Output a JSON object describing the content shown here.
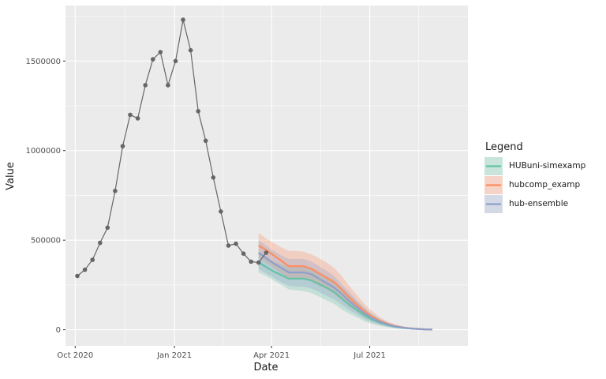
{
  "chart_data": {
    "type": "line",
    "xlabel": "Date",
    "ylabel": "Value",
    "xlim": [
      "2020-09-22",
      "2021-09-30"
    ],
    "ylim": [
      -90000,
      1810000
    ],
    "x_ticks": [
      {
        "date": "2020-10-01",
        "label": "Oct 2020"
      },
      {
        "date": "2021-01-01",
        "label": "Jan 2021"
      },
      {
        "date": "2021-04-01",
        "label": "Apr 2021"
      },
      {
        "date": "2021-07-01",
        "label": "Jul 2021"
      }
    ],
    "y_ticks": [
      {
        "value": 0,
        "label": "0"
      },
      {
        "value": 500000,
        "label": "500000"
      },
      {
        "value": 1000000,
        "label": "1000000"
      },
      {
        "value": 1500000,
        "label": "1500000"
      }
    ],
    "grid": true,
    "legend": {
      "title": "Legend",
      "position": "right",
      "entries": [
        "HUBuni-simexamp",
        "hubcomp_examp",
        "hub-ensemble"
      ]
    },
    "observed": {
      "color": "#666666",
      "x": [
        "2020-10-03",
        "2020-10-10",
        "2020-10-17",
        "2020-10-24",
        "2020-10-31",
        "2020-11-07",
        "2020-11-14",
        "2020-11-21",
        "2020-11-28",
        "2020-12-05",
        "2020-12-12",
        "2020-12-19",
        "2020-12-26",
        "2021-01-02",
        "2021-01-09",
        "2021-01-16",
        "2021-01-23",
        "2021-01-30",
        "2021-02-06",
        "2021-02-13",
        "2021-02-20",
        "2021-02-27",
        "2021-03-06",
        "2021-03-13",
        "2021-03-20",
        "2021-03-27"
      ],
      "y": [
        300000,
        335000,
        390000,
        485000,
        570000,
        775000,
        1025000,
        1200000,
        1180000,
        1365000,
        1510000,
        1550000,
        1365000,
        1500000,
        1730000,
        1560000,
        1220000,
        1055000,
        850000,
        660000,
        470000,
        480000,
        425000,
        380000,
        375000,
        430000
      ]
    },
    "forecast_x": [
      "2021-03-20",
      "2021-03-27",
      "2021-04-03",
      "2021-04-10",
      "2021-04-17",
      "2021-04-24",
      "2021-05-01",
      "2021-05-08",
      "2021-05-15",
      "2021-05-22",
      "2021-05-29",
      "2021-06-05",
      "2021-06-12",
      "2021-06-19",
      "2021-06-26",
      "2021-07-03",
      "2021-07-10",
      "2021-07-17",
      "2021-07-24",
      "2021-07-31",
      "2021-08-07",
      "2021-08-14",
      "2021-08-21",
      "2021-08-28"
    ],
    "series": [
      {
        "name": "HUBuni-simexamp",
        "color": "#66c2a5",
        "values": [
          375000,
          350000,
          325000,
          305000,
          285000,
          285000,
          285000,
          275000,
          255000,
          235000,
          210000,
          175000,
          140000,
          110000,
          80000,
          57000,
          40000,
          27000,
          17000,
          11000,
          7000,
          4000,
          2000,
          1000
        ],
        "lower": [
          320000,
          300000,
          275000,
          250000,
          225000,
          220000,
          215000,
          205000,
          185000,
          165000,
          145000,
          115000,
          90000,
          70000,
          48000,
          33000,
          22000,
          14000,
          8000,
          5000,
          3000,
          1500,
          700,
          300
        ],
        "upper": [
          430000,
          405000,
          380000,
          365000,
          350000,
          350000,
          350000,
          340000,
          320000,
          300000,
          275000,
          235000,
          195000,
          155000,
          115000,
          82000,
          58000,
          40000,
          26000,
          17000,
          11000,
          7000,
          4000,
          2000
        ]
      },
      {
        "name": "hubcomp_examp",
        "color": "#fc8d62",
        "values": [
          470000,
          445000,
          415000,
          385000,
          355000,
          355000,
          355000,
          340000,
          315000,
          290000,
          265000,
          225000,
          180000,
          140000,
          105000,
          73000,
          50000,
          33000,
          21000,
          13000,
          8500,
          5000,
          2500,
          1200
        ],
        "lower": [
          400000,
          375000,
          345000,
          315000,
          290000,
          288000,
          285000,
          270000,
          245000,
          225000,
          200000,
          165000,
          130000,
          100000,
          72000,
          50000,
          33000,
          22000,
          13000,
          8000,
          5000,
          2500,
          1200,
          500
        ],
        "upper": [
          540000,
          510000,
          485000,
          460000,
          440000,
          440000,
          435000,
          420000,
          400000,
          375000,
          345000,
          300000,
          245000,
          195000,
          145000,
          105000,
          72000,
          48000,
          31000,
          20000,
          12500,
          7500,
          4000,
          2000
        ]
      },
      {
        "name": "hub-ensemble",
        "color": "#8da0cb",
        "values": [
          430000,
          400000,
          370000,
          345000,
          320000,
          320000,
          320000,
          310000,
          285000,
          260000,
          235000,
          200000,
          160000,
          125000,
          92000,
          65000,
          45000,
          30000,
          19000,
          12000,
          7500,
          4500,
          2200,
          1100
        ],
        "lower": [
          340000,
          315000,
          290000,
          265000,
          245000,
          242000,
          240000,
          230000,
          210000,
          190000,
          170000,
          140000,
          110000,
          85000,
          60000,
          42000,
          28000,
          18000,
          11000,
          7000,
          4000,
          2000,
          1000,
          400
        ],
        "upper": [
          500000,
          470000,
          440000,
          415000,
          395000,
          395000,
          395000,
          380000,
          355000,
          330000,
          300000,
          255000,
          210000,
          165000,
          125000,
          90000,
          62000,
          42000,
          27000,
          17500,
          11000,
          7000,
          3800,
          1900
        ]
      }
    ]
  }
}
